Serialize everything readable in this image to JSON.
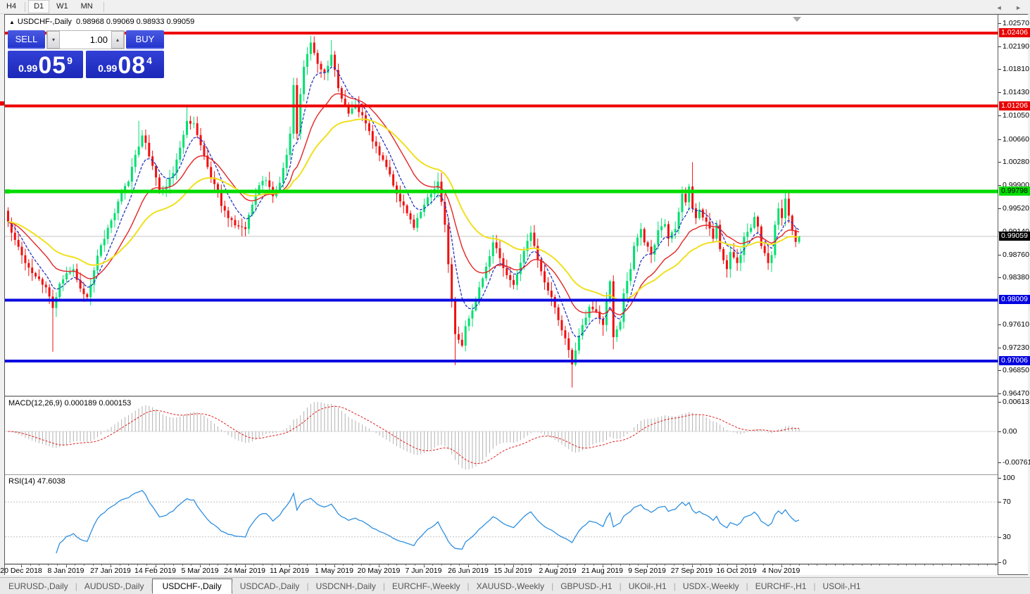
{
  "toolbar": {
    "timeframes": [
      "H4",
      "D1",
      "W1",
      "MN"
    ],
    "active_timeframe": "D1"
  },
  "window": {
    "title_arrow": "▲",
    "symbol_title": "USDCHF-,Daily",
    "ohlc_text": "0.98968 0.99069 0.98933 0.99059",
    "one_click": {
      "sell_label": "SELL",
      "buy_label": "BUY",
      "volume_value": "1.00",
      "spinner_down_icon": "▾",
      "spinner_up_icon": "▴",
      "sell_price": {
        "prefix": "0.99",
        "big": "05",
        "sup": "9"
      },
      "buy_price": {
        "prefix": "0.99",
        "big": "08",
        "sup": "4"
      }
    }
  },
  "chart_data": {
    "type": "candlestick",
    "symbol": "USDCHF",
    "period": "Daily",
    "last_candle": {
      "open": 0.98968,
      "high": 0.99069,
      "low": 0.98933,
      "close": 0.99059
    },
    "first_open": 0.9948,
    "candle_count": 231,
    "seed": 7,
    "jitter_amp": 0.0007,
    "close_anchors": [
      [
        0,
        0.993
      ],
      [
        2,
        0.99
      ],
      [
        5,
        0.9862
      ],
      [
        8,
        0.984
      ],
      [
        11,
        0.9822
      ],
      [
        13,
        0.9788
      ],
      [
        15,
        0.9828
      ],
      [
        17,
        0.9845
      ],
      [
        19,
        0.9852
      ],
      [
        21,
        0.982
      ],
      [
        23,
        0.9806
      ],
      [
        26,
        0.9874
      ],
      [
        29,
        0.992
      ],
      [
        31,
        0.9944
      ],
      [
        33,
        0.998
      ],
      [
        35,
        0.9996
      ],
      [
        37,
        1.004
      ],
      [
        39,
        1.0072
      ],
      [
        40,
        1.006
      ],
      [
        42,
        1.0022
      ],
      [
        44,
        0.998
      ],
      [
        46,
        0.9988
      ],
      [
        48,
        1.001
      ],
      [
        50,
        1.0052
      ],
      [
        52,
        1.0096
      ],
      [
        54,
        1.0092
      ],
      [
        56,
        1.0056
      ],
      [
        58,
        1.002
      ],
      [
        60,
        0.9992
      ],
      [
        62,
        0.9956
      ],
      [
        64,
        0.9936
      ],
      [
        66,
        0.9924
      ],
      [
        69,
        0.9918
      ],
      [
        71,
        0.9958
      ],
      [
        73,
        0.999
      ],
      [
        75,
        0.9998
      ],
      [
        77,
        0.9972
      ],
      [
        79,
        0.9994
      ],
      [
        81,
        1.004
      ],
      [
        82,
        1.0075
      ],
      [
        83,
        1.0155
      ],
      [
        84,
        1.0075
      ],
      [
        85,
        1.014
      ],
      [
        86,
        1.0185
      ],
      [
        88,
        1.0225
      ],
      [
        90,
        1.019
      ],
      [
        92,
        1.0175
      ],
      [
        94,
        1.0205
      ],
      [
        96,
        1.015
      ],
      [
        99,
        1.0108
      ],
      [
        101,
        1.0122
      ],
      [
        104,
        1.0092
      ],
      [
        106,
        1.0062
      ],
      [
        109,
        1.0032
      ],
      [
        111,
        1.0008
      ],
      [
        113,
        0.9976
      ],
      [
        116,
        0.9944
      ],
      [
        118,
        0.992
      ],
      [
        121,
        0.9958
      ],
      [
        123,
        0.9976
      ],
      [
        125,
        0.9996
      ],
      [
        127,
        0.9925
      ],
      [
        128,
        0.986
      ],
      [
        129,
        0.98
      ],
      [
        130,
        0.9745
      ],
      [
        132,
        0.9726
      ],
      [
        133,
        0.9758
      ],
      [
        135,
        0.9784
      ],
      [
        137,
        0.9822
      ],
      [
        139,
        0.9856
      ],
      [
        141,
        0.9896
      ],
      [
        143,
        0.987
      ],
      [
        145,
        0.9842
      ],
      [
        147,
        0.9826
      ],
      [
        150,
        0.9882
      ],
      [
        152,
        0.9912
      ],
      [
        154,
        0.9868
      ],
      [
        156,
        0.983
      ],
      [
        158,
        0.9806
      ],
      [
        160,
        0.9768
      ],
      [
        162,
        0.9738
      ],
      [
        164,
        0.9695
      ],
      [
        166,
        0.9742
      ],
      [
        168,
        0.9772
      ],
      [
        169,
        0.979
      ],
      [
        171,
        0.9782
      ],
      [
        173,
        0.976
      ],
      [
        174,
        0.98
      ],
      [
        175,
        0.9832
      ],
      [
        176,
        0.974
      ],
      [
        178,
        0.9765
      ],
      [
        179,
        0.9812
      ],
      [
        181,
        0.9852
      ],
      [
        182,
        0.989
      ],
      [
        184,
        0.9918
      ],
      [
        185,
        0.9896
      ],
      [
        187,
        0.9876
      ],
      [
        188,
        0.9892
      ],
      [
        189,
        0.9916
      ],
      [
        191,
        0.9926
      ],
      [
        192,
        0.9902
      ],
      [
        194,
        0.9918
      ],
      [
        195,
        0.9946
      ],
      [
        196,
        0.9976
      ],
      [
        197,
        0.9962
      ],
      [
        198,
        0.9988
      ],
      [
        199,
        0.9952
      ],
      [
        200,
        0.9936
      ],
      [
        201,
        0.995
      ],
      [
        203,
        0.993
      ],
      [
        205,
        0.9902
      ],
      [
        206,
        0.9925
      ],
      [
        207,
        0.9885
      ],
      [
        209,
        0.9852
      ],
      [
        210,
        0.988
      ],
      [
        212,
        0.9862
      ],
      [
        213,
        0.9875
      ],
      [
        214,
        0.9905
      ],
      [
        216,
        0.992
      ],
      [
        217,
        0.9938
      ],
      [
        218,
        0.9922
      ],
      [
        219,
        0.989
      ],
      [
        221,
        0.9862
      ],
      [
        222,
        0.9875
      ],
      [
        223,
        0.9925
      ],
      [
        224,
        0.9952
      ],
      [
        225,
        0.9936
      ],
      [
        226,
        0.9968
      ],
      [
        227,
        0.994
      ],
      [
        228,
        0.9916
      ],
      [
        229,
        0.98968
      ],
      [
        230,
        0.99059
      ]
    ],
    "wick_overrides": {
      "13": {
        "low": 0.9716
      },
      "23": {
        "low": 0.98
      },
      "38": {
        "high": 1.0096
      },
      "52": {
        "high": 1.0121
      },
      "69": {
        "low": 0.9906
      },
      "88": {
        "high": 1.0236
      },
      "94": {
        "high": 1.0229
      },
      "125": {
        "high": 1.0011
      },
      "130": {
        "low": 0.9694
      },
      "164": {
        "low": 0.9657
      },
      "173": {
        "low": 0.9742
      },
      "176": {
        "low": 0.972
      },
      "199": {
        "high": 1.0028
      },
      "209": {
        "low": 0.9838
      },
      "226": {
        "high": 0.9979
      }
    },
    "moving_averages": [
      {
        "name": "fast",
        "period": 7,
        "color": "#2736c0",
        "dash": "4 2",
        "width": 1.3
      },
      {
        "name": "mid",
        "period": 18,
        "color": "#e32525",
        "dash": "",
        "width": 1.4
      },
      {
        "name": "slow",
        "period": 36,
        "color": "#f0e01e",
        "dash": "",
        "width": 2
      }
    ],
    "hlines": [
      {
        "value": 1.02406,
        "label": "1.02406",
        "color": "#ee0000",
        "thickness": 4,
        "label_bg": "#e80000",
        "label_fg": "#ffffff"
      },
      {
        "value": 1.01206,
        "label": "1.01206",
        "color": "#ee0000",
        "thickness": 4,
        "label_bg": "#e80000",
        "label_fg": "#ffffff"
      },
      {
        "value": 0.99798,
        "label": "0.99798",
        "color": "#00dc00",
        "thickness": 5,
        "label_bg": "#00dc00",
        "label_fg": "#000000"
      },
      {
        "value": 0.98009,
        "label": "0.98009",
        "color": "#0a0ae0",
        "thickness": 4,
        "label_bg": "#0000e0",
        "label_fg": "#ffffff"
      },
      {
        "value": 0.97006,
        "label": "0.97006",
        "color": "#0a0ae0",
        "thickness": 4,
        "label_bg": "#0000e0",
        "label_fg": "#ffffff"
      }
    ],
    "current_price": {
      "value": 0.99059,
      "label": "0.99059",
      "line_color": "#c4c4c4",
      "label_bg": "#000000",
      "label_fg": "#ffffff"
    },
    "price_axis_ticks": [
      "1.02570",
      "1.02190",
      "1.01810",
      "1.01430",
      "1.01050",
      "1.00660",
      "1.00280",
      "0.99900",
      "0.99520",
      "0.99140",
      "0.98760",
      "0.98380",
      "0.97610",
      "0.97230",
      "0.96850",
      "0.96470"
    ],
    "time_axis_labels": [
      "20 Dec 2018",
      "8 Jan 2019",
      "27 Jan 2019",
      "14 Feb 2019",
      "5 Mar 2019",
      "24 Mar 2019",
      "11 Apr 2019",
      "1 May 2019",
      "20 May 2019",
      "7 Jun 2019",
      "26 Jun 2019",
      "15 Jul 2019",
      "2 Aug 2019",
      "21 Aug 2019",
      "9 Sep 2019",
      "27 Sep 2019",
      "16 Oct 2019",
      "4 Nov 2019"
    ],
    "colors": {
      "bull": "#00e070",
      "bear": "#f01010",
      "background": "#ffffff",
      "macd_bar": "#b2b2b2",
      "macd_signal": "#e02020",
      "rsi_line": "#2f8fe0",
      "rsi_level": "#c0c0c0"
    },
    "macd": {
      "name": "MACD(12,26,9)",
      "values": [
        "0.000189",
        "0.000153"
      ],
      "fast": 12,
      "slow": 26,
      "signal": 9,
      "axis_labels": [
        "0.00613",
        "0.00",
        "-0.007612"
      ]
    },
    "rsi": {
      "name": "RSI(14)",
      "value": "47.6038",
      "period": 14,
      "axis_labels": [
        "100",
        "70",
        "30",
        "0"
      ],
      "levels": [
        70,
        30
      ]
    }
  },
  "tab_bar": {
    "tabs": [
      {
        "label": "EURUSD-,Daily",
        "active": false
      },
      {
        "label": "AUDUSD-,Daily",
        "active": false
      },
      {
        "label": "USDCHF-,Daily",
        "active": true
      },
      {
        "label": "USDCAD-,Daily",
        "active": false
      },
      {
        "label": "USDCNH-,Daily",
        "active": false
      },
      {
        "label": "EURCHF-,Weekly",
        "active": false
      },
      {
        "label": "XAUUSD-,Weekly",
        "active": false
      },
      {
        "label": "GBPUSD-,H1",
        "active": false
      },
      {
        "label": "UKOil-,H1",
        "active": false
      },
      {
        "label": "USDX-,Weekly",
        "active": false
      },
      {
        "label": "EURCHF-,H1",
        "active": false
      },
      {
        "label": "USOil-,H1",
        "active": false
      }
    ],
    "scroll_left_icon": "◄",
    "scroll_right_icon": "►"
  }
}
